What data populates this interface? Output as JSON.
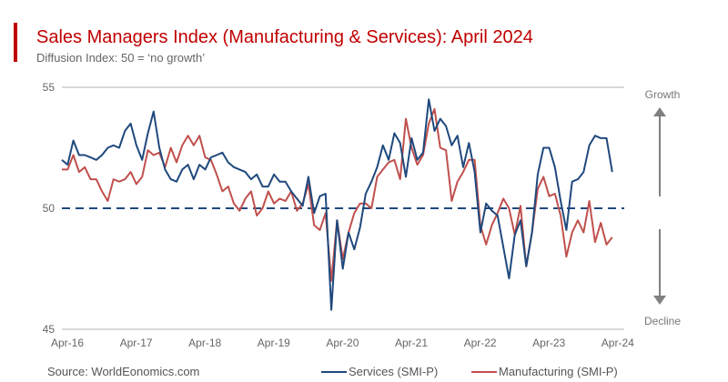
{
  "header": {
    "title": "Sales Managers Index (Manufacturing & Services): April 2024",
    "subtitle": "Diffusion Index: 50 = ‘no growth’"
  },
  "footer": {
    "source": "Source: WorldEonomics.com"
  },
  "annotations": {
    "growth": "Growth",
    "decline": "Decline"
  },
  "chart_data": {
    "type": "line",
    "title": "Sales Managers Index (Manufacturing & Services): April 2024",
    "subtitle": "Diffusion Index: 50 = ‘no growth’",
    "x_start": "Apr-16",
    "x_end": "Apr-24",
    "frequency": "monthly",
    "x_tick_labels": [
      "Apr-16",
      "Apr-17",
      "Apr-18",
      "Apr-19",
      "Apr-20",
      "Apr-21",
      "Apr-22",
      "Apr-23",
      "Apr-24"
    ],
    "y_tick_labels": [
      "55",
      "50",
      "45"
    ],
    "ylim": [
      45,
      55
    ],
    "reference_line": {
      "value": 50,
      "style": "dashed",
      "color": "#1f497d"
    },
    "grid": "horizontal at 45 and 55",
    "legend": "bottom",
    "series": [
      {
        "name": "Services (SMI-P)",
        "color": "#1f497d",
        "values": [
          52.0,
          51.8,
          52.8,
          52.2,
          52.2,
          52.1,
          52.0,
          52.2,
          52.5,
          52.6,
          52.5,
          53.2,
          53.5,
          52.6,
          52.0,
          53.1,
          54.0,
          52.5,
          51.6,
          51.2,
          51.1,
          51.6,
          51.8,
          51.2,
          51.8,
          51.6,
          52.1,
          52.2,
          52.3,
          51.9,
          51.7,
          51.6,
          51.5,
          51.2,
          51.4,
          50.9,
          50.9,
          51.4,
          51.1,
          51.1,
          50.7,
          50.4,
          50.1,
          51.3,
          49.8,
          50.5,
          50.6,
          45.8,
          49.5,
          47.5,
          49.0,
          48.3,
          49.2,
          50.6,
          51.1,
          51.7,
          52.6,
          52.0,
          53.1,
          52.7,
          51.3,
          52.9,
          52.0,
          52.3,
          54.5,
          53.2,
          53.7,
          53.4,
          52.6,
          53.0,
          51.7,
          52.7,
          51.5,
          49.0,
          50.2,
          49.9,
          49.7,
          48.4,
          47.1,
          48.9,
          49.5,
          47.6,
          49.0,
          51.4,
          52.5,
          52.5,
          51.7,
          50.3,
          49.1,
          51.1,
          51.2,
          51.5,
          52.6,
          53.0,
          52.9,
          52.9,
          51.5
        ]
      },
      {
        "name": "Manufacturing (SMI-P)",
        "color": "#c0504d",
        "values": [
          51.6,
          51.6,
          52.2,
          51.5,
          51.7,
          51.2,
          51.2,
          50.7,
          50.3,
          51.2,
          51.1,
          51.2,
          51.5,
          51.0,
          51.3,
          52.4,
          52.2,
          52.3,
          51.7,
          52.5,
          51.9,
          52.6,
          53.0,
          52.6,
          53.0,
          52.1,
          52.0,
          51.4,
          50.7,
          50.9,
          50.2,
          49.9,
          50.4,
          50.7,
          49.7,
          50.0,
          50.7,
          50.2,
          50.4,
          50.3,
          50.7,
          49.9,
          50.2,
          51.0,
          49.3,
          49.1,
          49.8,
          47.0,
          49.5,
          47.9,
          49.0,
          49.8,
          50.2,
          50.2,
          50.0,
          51.3,
          51.6,
          51.9,
          52.0,
          51.2,
          53.7,
          52.5,
          51.8,
          52.2,
          53.5,
          54.1,
          52.5,
          52.4,
          50.3,
          51.1,
          51.5,
          52.0,
          52.0,
          49.3,
          48.5,
          49.3,
          49.8,
          50.4,
          50.0,
          48.9,
          50.1,
          47.6,
          49.0,
          50.8,
          51.3,
          50.5,
          50.6,
          49.7,
          48.0,
          49.0,
          49.5,
          49.0,
          50.3,
          48.6,
          49.4,
          48.5,
          48.8
        ]
      }
    ]
  }
}
